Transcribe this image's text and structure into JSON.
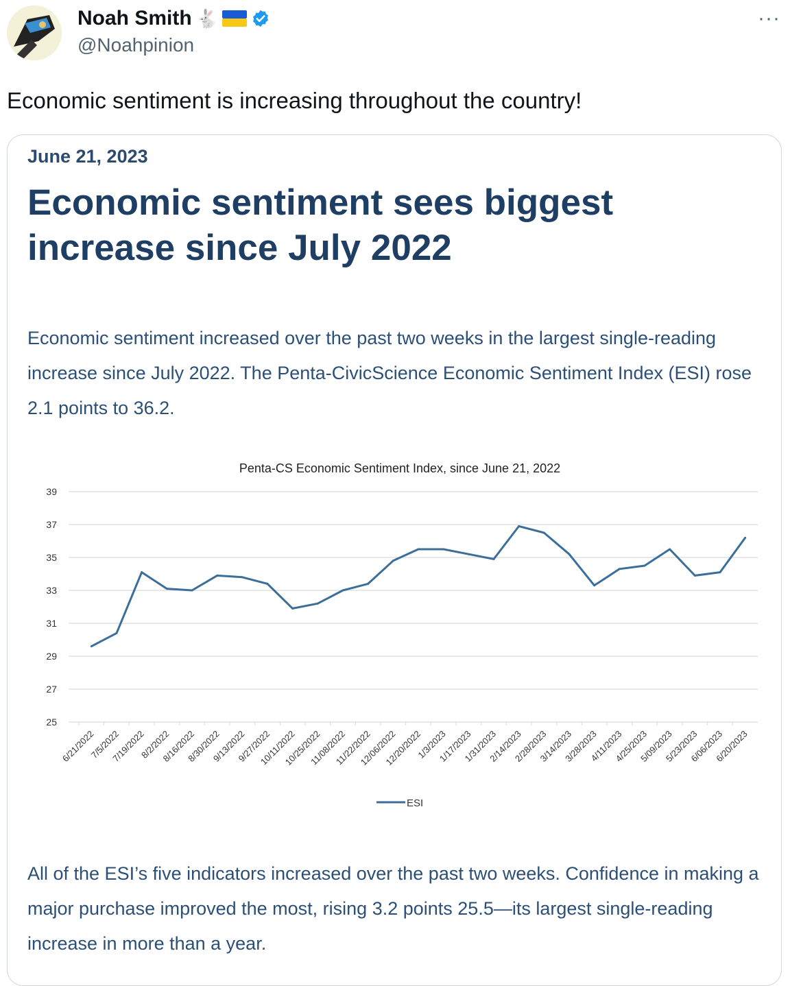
{
  "author": {
    "name": "Noah Smith",
    "emoji": "🐇",
    "handle": "@Noahpinion"
  },
  "more_label": "···",
  "tweet_text": "Economic sentiment is increasing throughout the country!",
  "card": {
    "date": "June 21, 2023",
    "headline": "Economic sentiment sees biggest increase since July 2022",
    "intro": "Economic sentiment increased over the past two weeks in the largest single-reading increase since July 2022. The Penta-CivicScience Economic Sentiment Index (ESI) rose 2.1 points to 36.2.",
    "closing": "All of the ESI’s five indicators increased over the past two weeks. Confidence in making a major purchase improved the most, rising 3.2 points 25.5—its largest single-reading increase in more than a year."
  },
  "colors": {
    "line": "#3b6e99",
    "grid": "#d9d9d9",
    "headline": "#1f3e63",
    "verified": "#1d9bf0"
  },
  "chart_data": {
    "type": "line",
    "title": "Penta-CS Economic Sentiment Index, since June 21, 2022",
    "categories": [
      "6/21/2022",
      "7/5/2022",
      "7/19/2022",
      "8/2/2022",
      "8/16/2022",
      "8/30/2022",
      "9/13/2022",
      "9/27/2022",
      "10/11/2022",
      "10/25/2022",
      "11/08/2022",
      "11/22/2022",
      "12/06/2022",
      "12/20/2022",
      "1/3/2023",
      "1/17/2023",
      "1/31/2023",
      "2/14/2023",
      "2/28/2023",
      "3/14/2023",
      "3/28/2023",
      "4/11/2023",
      "4/25/2023",
      "5/09/2023",
      "5/23/2023",
      "6/06/2023",
      "6/20/2023"
    ],
    "series": [
      {
        "name": "ESI",
        "values": [
          29.6,
          30.4,
          34.1,
          33.1,
          33.0,
          33.9,
          33.8,
          33.4,
          31.9,
          32.2,
          33.0,
          33.4,
          34.8,
          35.5,
          35.5,
          35.2,
          34.9,
          36.9,
          36.5,
          35.2,
          33.3,
          34.3,
          34.5,
          35.5,
          33.9,
          34.1,
          36.2
        ]
      }
    ],
    "yticks": [
      25,
      27,
      29,
      31,
      33,
      35,
      37,
      39
    ],
    "ylim": [
      25,
      39
    ],
    "legend": "bottom",
    "grid": true
  }
}
